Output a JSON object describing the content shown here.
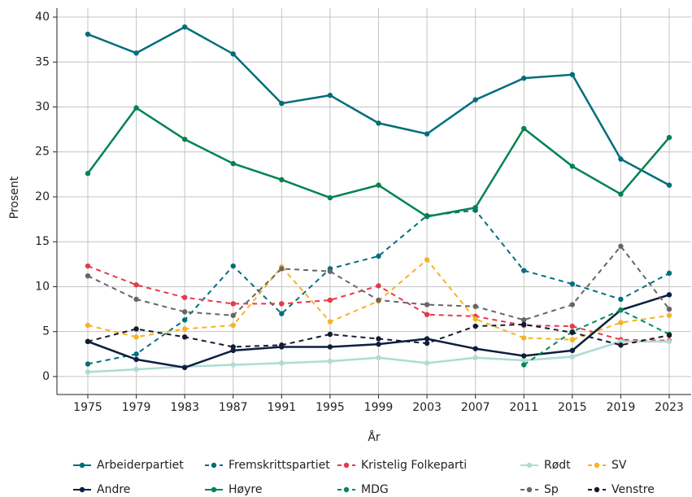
{
  "chart_data": {
    "type": "line",
    "x_label": "År",
    "y_label": "Prosent",
    "categories": [
      "1975",
      "1979",
      "1983",
      "1987",
      "1991",
      "1995",
      "1999",
      "2003",
      "2007",
      "2011",
      "2015",
      "2019",
      "2023"
    ],
    "ylim": [
      -2,
      41
    ],
    "yticks": [
      0,
      5,
      10,
      15,
      20,
      25,
      30,
      35,
      40
    ],
    "grid": true,
    "series": [
      {
        "name": "Arbeiderpartiet",
        "color": "#006d7a",
        "dash": false,
        "values": [
          38.1,
          36.0,
          38.9,
          35.9,
          30.4,
          31.3,
          28.2,
          27.0,
          30.8,
          33.2,
          33.6,
          24.2,
          21.3
        ]
      },
      {
        "name": "Fremskrittspartiet",
        "color": "#00707d",
        "dash": true,
        "values": [
          1.4,
          2.5,
          6.3,
          12.3,
          7.0,
          12.0,
          13.4,
          17.9,
          18.5,
          11.8,
          10.3,
          8.6,
          11.5
        ]
      },
      {
        "name": "Kristelig Folkeparti",
        "color": "#e6394a",
        "dash": true,
        "values": [
          12.3,
          10.2,
          8.8,
          8.1,
          8.1,
          8.5,
          10.1,
          6.9,
          6.7,
          5.7,
          5.6,
          4.1,
          4.0
        ]
      },
      {
        "name": "Rødt",
        "color": "#acdcd4",
        "dash": false,
        "values": [
          0.5,
          0.8,
          1.1,
          1.3,
          1.5,
          1.7,
          2.1,
          1.5,
          2.1,
          1.8,
          2.2,
          3.9,
          3.9
        ]
      },
      {
        "name": "SV",
        "color": "#f5b423",
        "dash": true,
        "values": [
          5.7,
          4.4,
          5.3,
          5.7,
          12.2,
          6.1,
          8.4,
          13.0,
          6.4,
          4.3,
          4.1,
          6.0,
          6.8
        ]
      },
      {
        "name": "Andre",
        "color": "#0b1f3f",
        "dash": false,
        "values": [
          3.9,
          1.9,
          1.0,
          2.9,
          3.3,
          3.3,
          3.6,
          4.2,
          3.1,
          2.3,
          2.9,
          7.4,
          9.1
        ]
      },
      {
        "name": "Høyre",
        "color": "#00834f",
        "dash": false,
        "values": [
          22.6,
          29.9,
          26.4,
          23.7,
          21.9,
          19.9,
          21.3,
          17.8,
          18.8,
          27.6,
          23.4,
          20.3,
          26.6
        ]
      },
      {
        "name": "MDG",
        "color": "#008a55",
        "dash": true,
        "values": [
          null,
          null,
          null,
          null,
          null,
          null,
          null,
          null,
          null,
          1.3,
          5.0,
          7.4,
          4.7
        ]
      },
      {
        "name": "Sp",
        "color": "#666666",
        "dash": true,
        "values": [
          11.2,
          8.6,
          7.2,
          6.8,
          12.0,
          11.7,
          8.5,
          8.0,
          7.8,
          6.3,
          8.0,
          14.5,
          7.5
        ]
      },
      {
        "name": "Venstre",
        "color": "#141a30",
        "dash": true,
        "values": [
          3.9,
          5.3,
          4.4,
          3.3,
          3.5,
          4.7,
          4.2,
          3.7,
          5.6,
          5.8,
          4.9,
          3.5,
          4.6
        ]
      }
    ]
  }
}
